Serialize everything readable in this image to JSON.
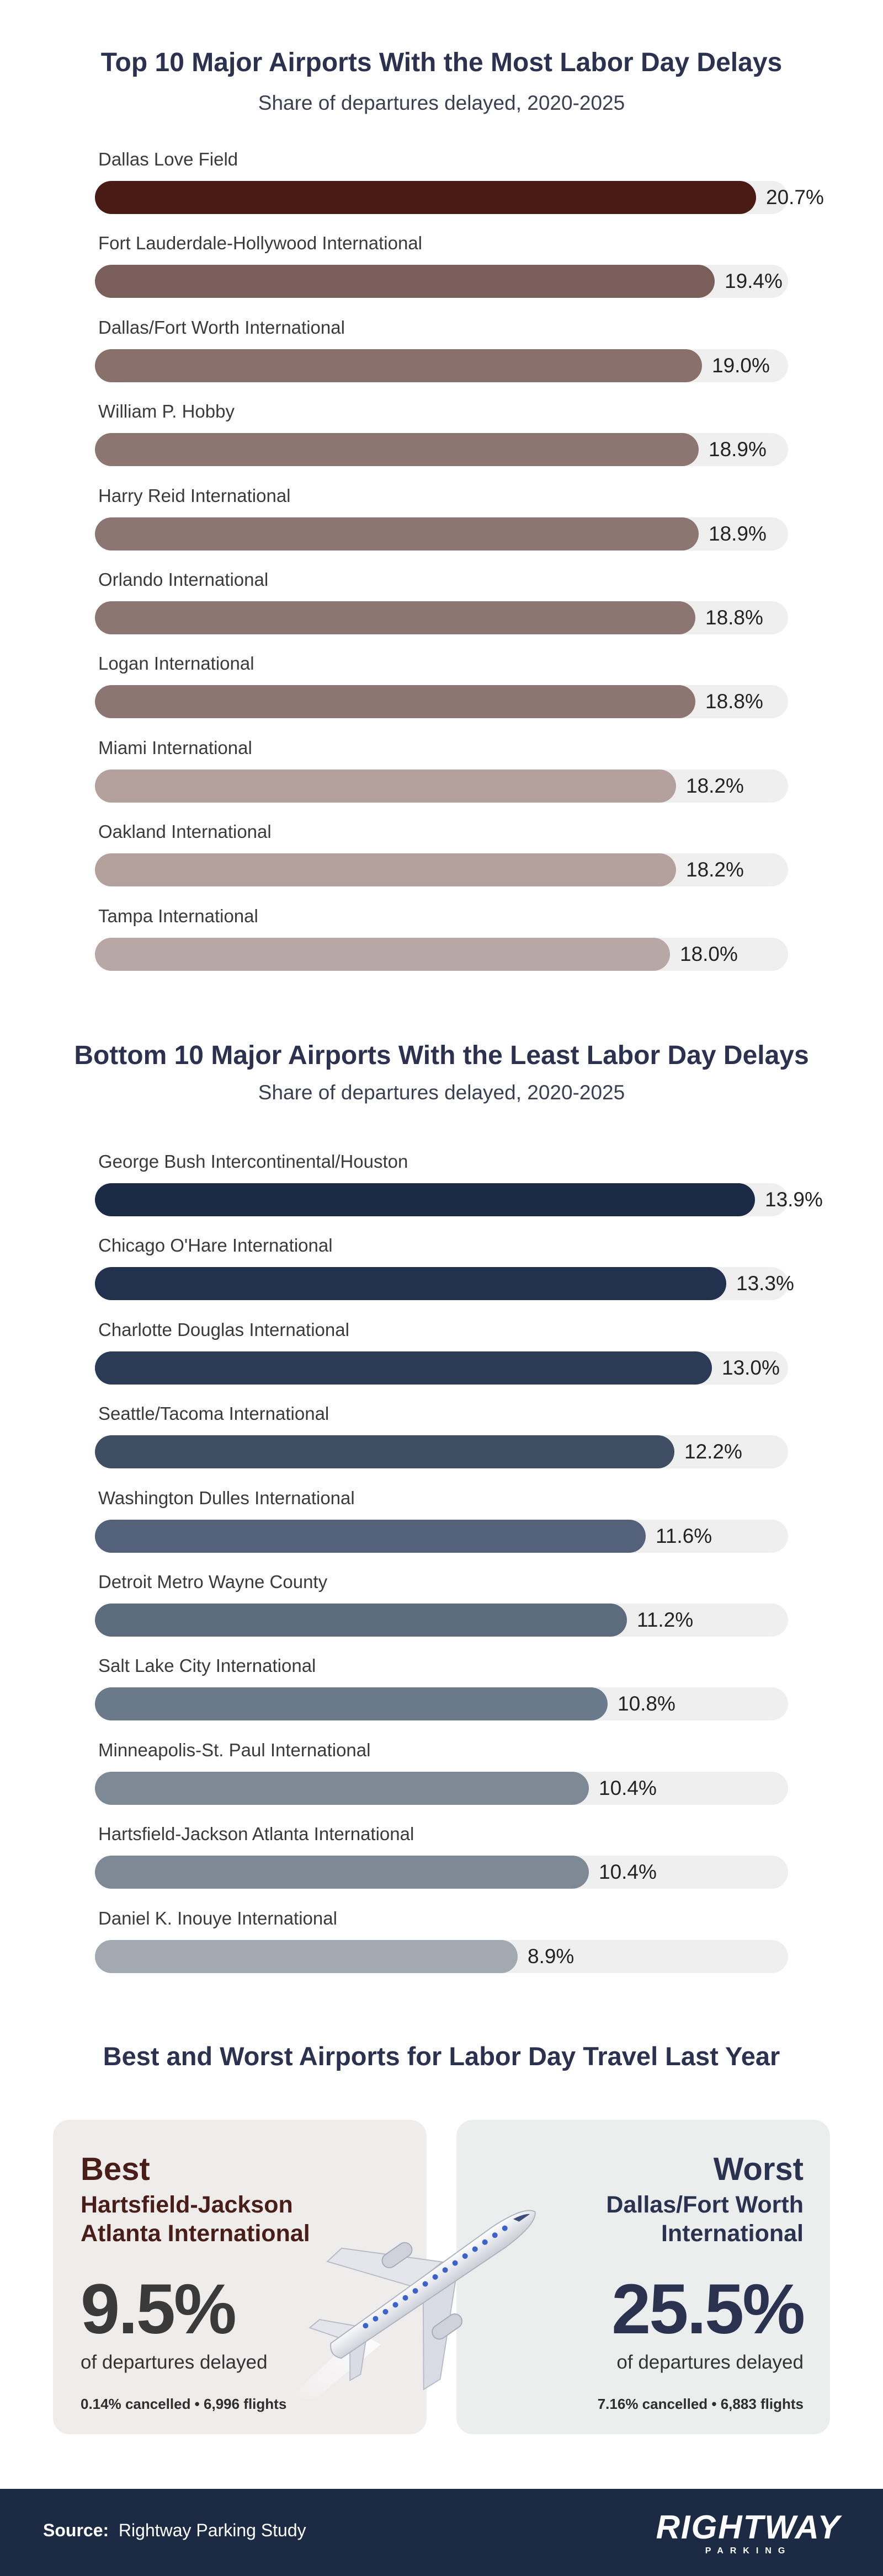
{
  "chart_data": [
    {
      "type": "bar",
      "orientation": "horizontal",
      "title": "Top 10 Major Airports With the Most Labor Day Delays",
      "subtitle": "Share of departures delayed, 2020-2025",
      "value_suffix": "%",
      "xlim": [
        0,
        21.7
      ],
      "categories": [
        "Dallas Love Field",
        "Fort Lauderdale-Hollywood International",
        "Dallas/Fort Worth International",
        "William P. Hobby",
        "Harry Reid International",
        "Orlando International",
        "Logan International",
        "Miami International",
        "Oakland International",
        "Tampa International"
      ],
      "values": [
        20.7,
        19.4,
        19.0,
        18.9,
        18.9,
        18.8,
        18.8,
        18.2,
        18.2,
        18.0
      ],
      "value_labels": [
        "20.7%",
        "19.4%",
        "19.0%",
        "18.9%",
        "18.9%",
        "18.8%",
        "18.8%",
        "18.2%",
        "18.2%",
        "18.0%"
      ],
      "colors": [
        "#4a1a15",
        "#7a5e59",
        "#8a706b",
        "#8d7671",
        "#8d7671",
        "#8d7671",
        "#8d7671",
        "#b4a19d",
        "#b4a19d",
        "#b8a8a5"
      ]
    },
    {
      "type": "bar",
      "orientation": "horizontal",
      "title": "Bottom 10 Major Airports With the Least Labor Day Delays",
      "subtitle": "Share of departures delayed, 2020-2025",
      "value_suffix": "%",
      "xlim": [
        0,
        14.6
      ],
      "categories": [
        "George Bush Intercontinental/Houston",
        "Chicago O'Hare International",
        "Charlotte Douglas International",
        "Seattle/Tacoma International",
        "Washington Dulles International",
        "Detroit Metro Wayne County",
        "Salt Lake City International",
        "Minneapolis-St. Paul International",
        "Hartsfield-Jackson Atlanta International",
        "Daniel K. Inouye International"
      ],
      "values": [
        13.9,
        13.3,
        13.0,
        12.2,
        11.6,
        11.2,
        10.8,
        10.4,
        10.4,
        8.9
      ],
      "value_labels": [
        "13.9%",
        "13.3%",
        "13.0%",
        "12.2%",
        "11.6%",
        "11.2%",
        "10.8%",
        "10.4%",
        "10.4%",
        "8.9%"
      ],
      "colors": [
        "#1b2a45",
        "#22324e",
        "#2c3b55",
        "#3f4e63",
        "#53627a",
        "#5d6b7f",
        "#6b7a8b",
        "#7e8996",
        "#7e8996",
        "#a3a9b1"
      ]
    }
  ],
  "best_worst": {
    "title": "Best and Worst Airports for Labor Day Travel Last Year",
    "best": {
      "heading": "Best",
      "airport_line1": "Hartsfield-Jackson",
      "airport_line2": "Atlanta International",
      "value": "9.5%",
      "caption": "of departures delayed",
      "footnote": "0.14% cancelled • 6,996 flights"
    },
    "worst": {
      "heading": "Worst",
      "airport_line1": "Dallas/Fort Worth",
      "airport_line2": "International",
      "value": "25.5%",
      "caption": "of departures delayed",
      "footnote": "7.16% cancelled • 6,883 flights"
    }
  },
  "footer": {
    "source_label": "Source:",
    "source_text": "Rightway Parking Study",
    "logo_main": "RIGHTWAY",
    "logo_sub": "PARKING"
  },
  "colors": {
    "track": "#f0efef",
    "footer_bg": "#1c2a44",
    "title": "#2d3150"
  }
}
